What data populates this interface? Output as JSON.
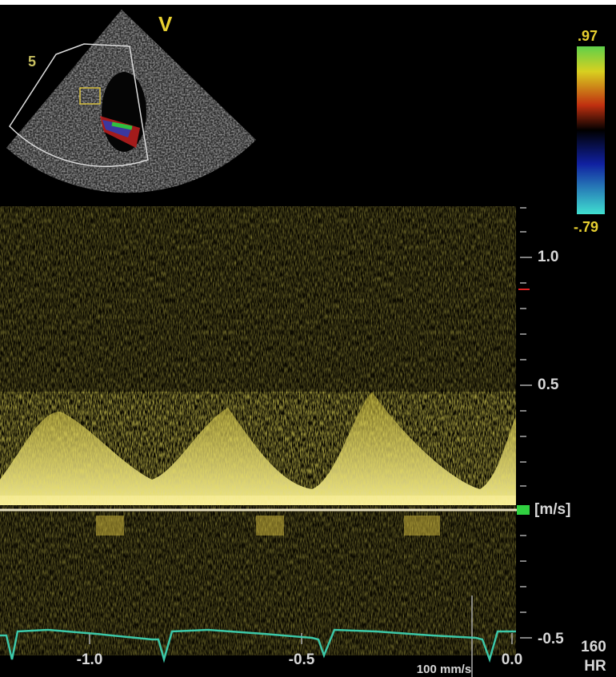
{
  "sector": {
    "label": "V",
    "depth": "5"
  },
  "color_bar": {
    "max": ".97",
    "min": "-.79"
  },
  "velocity_axis": {
    "ticks": [
      "1.0",
      "0.5",
      "-0.5"
    ],
    "unit": "[m/s]"
  },
  "time_axis": {
    "ticks": [
      "-1.0",
      "-0.5",
      "0.0"
    ],
    "sweep": "100 mm/s"
  },
  "heart_rate": {
    "value": "160",
    "label": "HR"
  }
}
